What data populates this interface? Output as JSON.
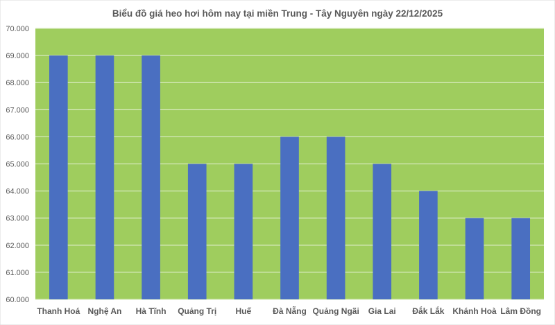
{
  "chart_data": {
    "type": "bar",
    "title": "Biểu đồ giá heo hơi hôm nay tại miền Trung - Tây Nguyên ngày 22/12/2025",
    "categories": [
      "Thanh Hoá",
      "Nghệ An",
      "Hà Tĩnh",
      "Quảng Trị",
      "Huế",
      "Đà Nẵng",
      "Quảng Ngãi",
      "Gia Lai",
      "Đắk Lắk",
      "Khánh Hoà",
      "Lâm Đồng"
    ],
    "values": [
      69000,
      69000,
      69000,
      65000,
      65000,
      66000,
      66000,
      65000,
      64000,
      63000,
      63000
    ],
    "ylim": [
      60000,
      70000
    ],
    "yticks": [
      "60.000",
      "61.000",
      "62.000",
      "63.000",
      "64.000",
      "65.000",
      "66.000",
      "67.000",
      "68.000",
      "69.000",
      "70.000"
    ],
    "xlabel": "",
    "ylabel": "",
    "grid": true,
    "colors": {
      "bar": "#4A6FC1",
      "plot_background": "#9FCD5E",
      "grid": "#D6E9BC",
      "text": "#595959"
    }
  }
}
